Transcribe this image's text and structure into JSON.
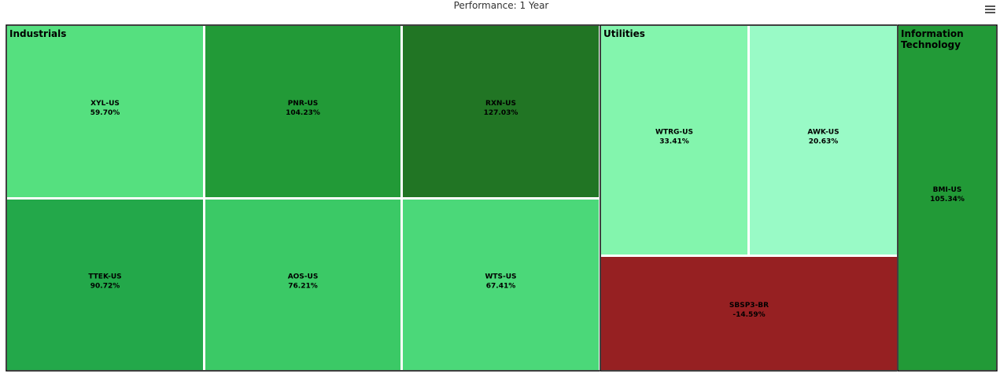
{
  "chart_data": {
    "type": "treemap",
    "title": "Performance: 1 Year",
    "groups": [
      {
        "name": "Industrials",
        "items": [
          {
            "name": "XYL-US",
            "value": 59.7,
            "value_label": "59.70%",
            "color": "#55e07f"
          },
          {
            "name": "PNR-US",
            "value": 104.23,
            "value_label": "104.23%",
            "color": "#229a37"
          },
          {
            "name": "RXN-US",
            "value": 127.03,
            "value_label": "127.03%",
            "color": "#217524"
          },
          {
            "name": "TTEK-US",
            "value": 90.72,
            "value_label": "90.72%",
            "color": "#23a84a"
          },
          {
            "name": "AOS-US",
            "value": 76.21,
            "value_label": "76.21%",
            "color": "#3bc966"
          },
          {
            "name": "WTS-US",
            "value": 67.41,
            "value_label": "67.41%",
            "color": "#4bd879"
          }
        ]
      },
      {
        "name": "Utilities",
        "items": [
          {
            "name": "WTRG-US",
            "value": 33.41,
            "value_label": "33.41%",
            "color": "#83f5ad"
          },
          {
            "name": "AWK-US",
            "value": 20.63,
            "value_label": "20.63%",
            "color": "#99fac6"
          },
          {
            "name": "SBSP3-BR",
            "value": -14.59,
            "value_label": "-14.59%",
            "color": "#962022"
          }
        ]
      },
      {
        "name": "Information Technology",
        "items": [
          {
            "name": "BMI-US",
            "value": 105.34,
            "value_label": "105.34%",
            "color": "#229a37"
          }
        ]
      }
    ]
  }
}
